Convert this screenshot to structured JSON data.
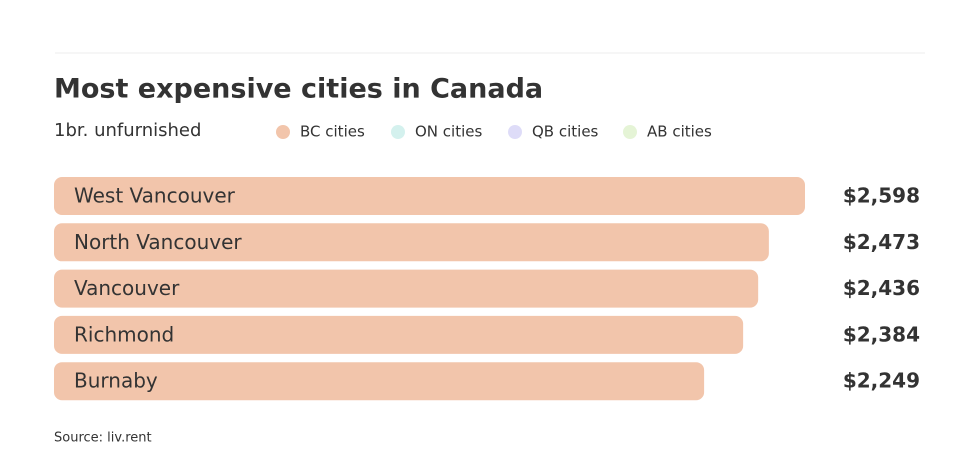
{
  "chart_data": {
    "type": "bar",
    "orientation": "horizontal",
    "title": "Most expensive cities in Canada",
    "subtitle": "1br. unfurnished",
    "legend": [
      {
        "name": "BC cities",
        "color": "#f2c5ab"
      },
      {
        "name": "ON cities",
        "color": "#d4f1ee"
      },
      {
        "name": "QB cities",
        "color": "#dedcf8"
      },
      {
        "name": "AB cities",
        "color": "#e5f4d6"
      }
    ],
    "categories": [
      "West Vancouver",
      "North Vancouver",
      "Vancouver",
      "Richmond",
      "Burnaby"
    ],
    "values": [
      2598,
      2473,
      2436,
      2384,
      2249
    ],
    "value_labels": [
      "$2,598",
      "$2,473",
      "$2,436",
      "$2,384",
      "$2,249"
    ],
    "color": "#f2c5ab",
    "source": "Source: liv.rent"
  }
}
